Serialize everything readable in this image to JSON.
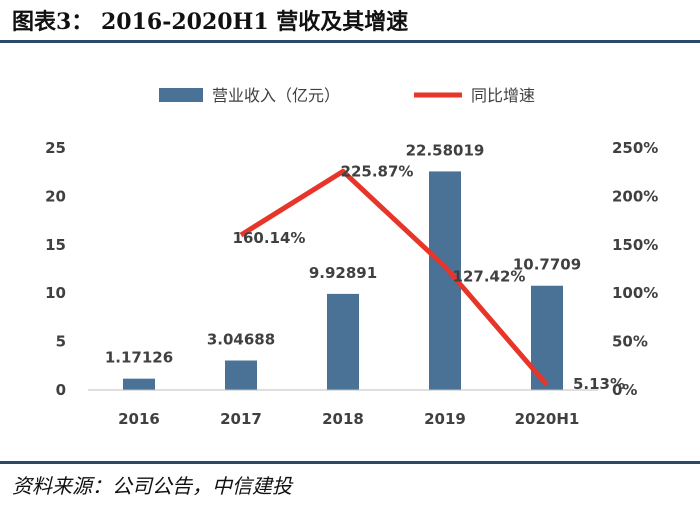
{
  "figure": {
    "title": "图表3： 2016-2020H1 营收及其增速",
    "source": "资料来源：公司公告，中信建投"
  },
  "colors": {
    "bar": "#4a7297",
    "line": "#e8352a",
    "text": "#404040",
    "rule": "#2d4a6b"
  },
  "chart_data": {
    "type": "bar",
    "categories": [
      "2016",
      "2017",
      "2018",
      "2019",
      "2020H1"
    ],
    "series": [
      {
        "name": "营业收入（亿元）",
        "type": "bar",
        "axis": "left",
        "values": [
          1.17126,
          3.04688,
          9.92891,
          22.58019,
          10.7709
        ],
        "labels": [
          "1.17126",
          "3.04688",
          "9.92891",
          "22.58019",
          "10.7709"
        ]
      },
      {
        "name": "同比增速",
        "type": "line",
        "axis": "right",
        "values": [
          null,
          160.14,
          225.87,
          127.42,
          5.13
        ],
        "labels": [
          "",
          "160.14%",
          "225.87%",
          "127.42%",
          "5.13%"
        ]
      }
    ],
    "left_axis": {
      "ylim": [
        0,
        25
      ],
      "ticks": [
        "0",
        "5",
        "10",
        "15",
        "20",
        "25"
      ]
    },
    "right_axis": {
      "ylim": [
        0,
        250
      ],
      "ticks": [
        "0%",
        "50%",
        "100%",
        "150%",
        "200%",
        "250%"
      ]
    },
    "legend": "top-center",
    "grid": false
  }
}
